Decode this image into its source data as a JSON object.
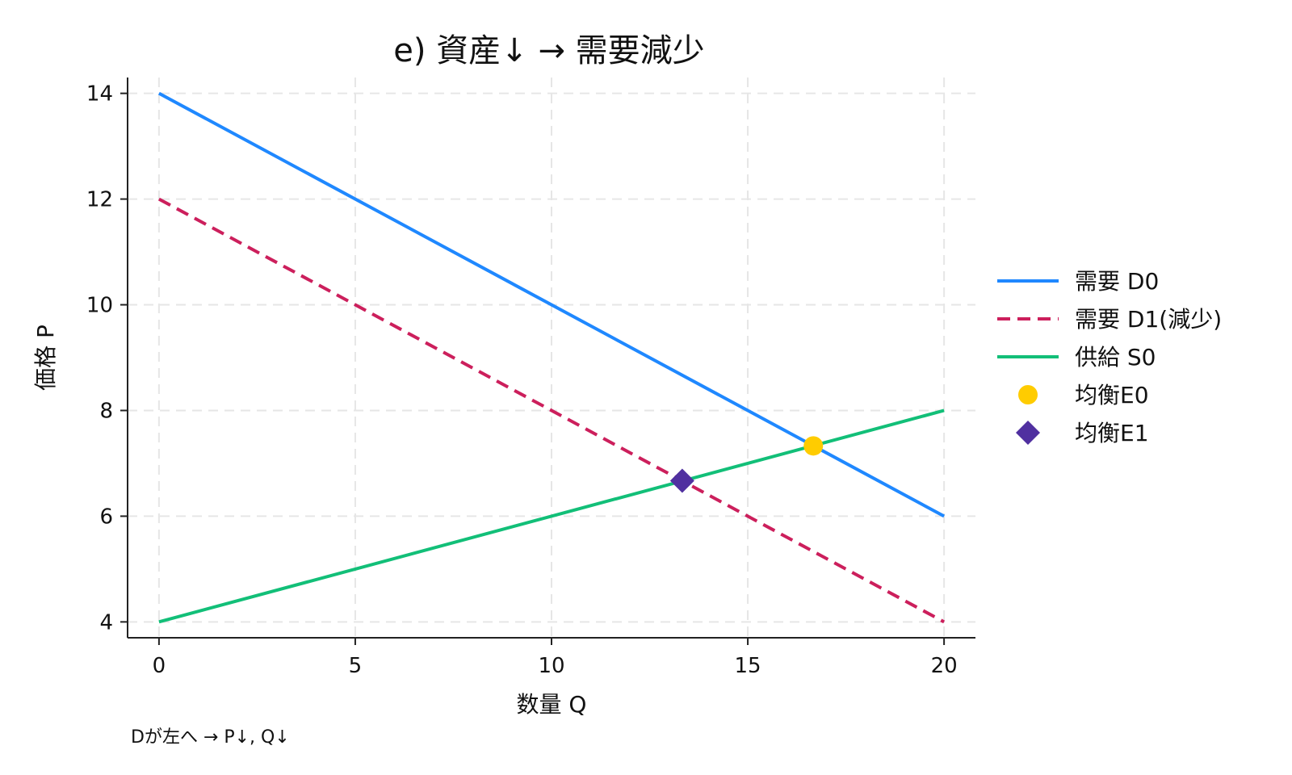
{
  "chart_data": {
    "type": "line",
    "title": "e) 資産↓ → 需要減少",
    "xlabel": "数量 Q",
    "ylabel": "価格 P",
    "xlim": [
      -0.8,
      20.8
    ],
    "ylim": [
      3.7,
      14.3
    ],
    "xticks": [
      0,
      5,
      10,
      15,
      20
    ],
    "yticks": [
      4,
      6,
      8,
      10,
      12,
      14
    ],
    "grid": true,
    "legend_position": "right",
    "series": [
      {
        "name": "需要 D0",
        "style": "solid",
        "color": "#1f88ff",
        "x": [
          0,
          20
        ],
        "y": [
          14,
          6
        ]
      },
      {
        "name": "需要 D1(減少)",
        "style": "dashed",
        "color": "#cc1f5c",
        "x": [
          0,
          20
        ],
        "y": [
          12,
          4
        ]
      },
      {
        "name": "供給 S0",
        "style": "solid",
        "color": "#12bf78",
        "x": [
          0,
          20
        ],
        "y": [
          4,
          8
        ]
      }
    ],
    "points": [
      {
        "name": "均衡E0",
        "marker": "circle",
        "color": "#ffcc00",
        "x": 16.67,
        "y": 7.33
      },
      {
        "name": "均衡E1",
        "marker": "diamond",
        "color": "#5030a0",
        "x": 13.33,
        "y": 6.67
      }
    ],
    "note": "Dが左へ → P↓, Q↓"
  }
}
